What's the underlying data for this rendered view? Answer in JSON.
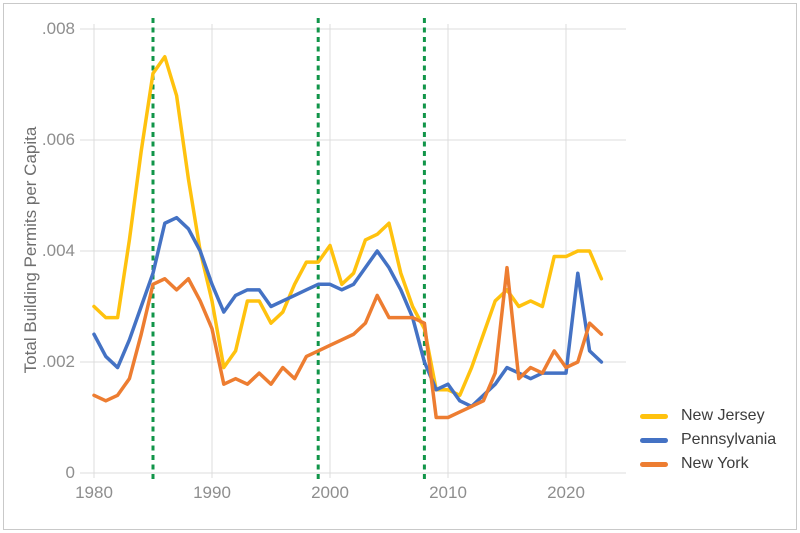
{
  "figure": {
    "background_color": "#ffffff",
    "border_color": "#c9c9c9",
    "grid_color": "#dcdcdc",
    "axis_tick_text_color": "#8e8e8e",
    "axis_title_text_color": "#6e6e6e",
    "legend_text_color": "#3d3d3d"
  },
  "chart_data": {
    "type": "line",
    "title": "",
    "xlabel": "",
    "ylabel": "Total Building Permits per Capita",
    "grid": true,
    "legend_position": "bottom-right",
    "xlim": [
      1980,
      2025
    ],
    "ylim": [
      0,
      0.008
    ],
    "xticks": {
      "values": [
        1980,
        1990,
        2000,
        2010,
        2020
      ],
      "labels": [
        "1980",
        "1990",
        "2000",
        "2010",
        "2020"
      ]
    },
    "yticks": {
      "values": [
        0,
        0.002,
        0.004,
        0.006,
        0.008
      ],
      "labels": [
        "0",
        ".002",
        ".004",
        ".006",
        ".008"
      ]
    },
    "vlines": {
      "style": "dashed",
      "color": "#119549",
      "years": [
        1985,
        1999,
        2008
      ]
    },
    "x": [
      1980,
      1981,
      1982,
      1983,
      1984,
      1985,
      1986,
      1987,
      1988,
      1989,
      1990,
      1991,
      1992,
      1993,
      1994,
      1995,
      1996,
      1997,
      1998,
      1999,
      2000,
      2001,
      2002,
      2003,
      2004,
      2005,
      2006,
      2007,
      2008,
      2009,
      2010,
      2011,
      2012,
      2013,
      2014,
      2015,
      2016,
      2017,
      2018,
      2019,
      2020,
      2021,
      2022,
      2023
    ],
    "series": [
      {
        "name": "New Jersey",
        "color": "#FFC20E",
        "values": [
          0.003,
          0.0028,
          0.0028,
          0.0042,
          0.0058,
          0.0072,
          0.0075,
          0.0068,
          0.0053,
          0.004,
          0.0031,
          0.0019,
          0.0022,
          0.0031,
          0.0031,
          0.0027,
          0.0029,
          0.0034,
          0.0038,
          0.0038,
          0.0041,
          0.0034,
          0.0036,
          0.0042,
          0.0043,
          0.0045,
          0.0036,
          0.003,
          0.0026,
          0.0015,
          0.0015,
          0.0014,
          0.0019,
          0.0025,
          0.0031,
          0.0033,
          0.003,
          0.0031,
          0.003,
          0.0039,
          0.0039,
          0.004,
          0.004,
          0.0035
        ]
      },
      {
        "name": "Pennsylvania",
        "color": "#4472C4",
        "values": [
          0.0025,
          0.0021,
          0.0019,
          0.0024,
          0.003,
          0.0036,
          0.0045,
          0.0046,
          0.0044,
          0.004,
          0.0034,
          0.0029,
          0.0032,
          0.0033,
          0.0033,
          0.003,
          0.0031,
          0.0032,
          0.0033,
          0.0034,
          0.0034,
          0.0033,
          0.0034,
          0.0037,
          0.004,
          0.0037,
          0.0033,
          0.0028,
          0.002,
          0.0015,
          0.0016,
          0.0013,
          0.0012,
          0.0014,
          0.0016,
          0.0019,
          0.0018,
          0.0017,
          0.0018,
          0.0018,
          0.0018,
          0.0036,
          0.0022,
          0.002
        ]
      },
      {
        "name": "New York",
        "color": "#ED7D31",
        "values": [
          0.0014,
          0.0013,
          0.0014,
          0.0017,
          0.0025,
          0.0034,
          0.0035,
          0.0033,
          0.0035,
          0.0031,
          0.0026,
          0.0016,
          0.0017,
          0.0016,
          0.0018,
          0.0016,
          0.0019,
          0.0017,
          0.0021,
          0.0022,
          0.0023,
          0.0024,
          0.0025,
          0.0027,
          0.0032,
          0.0028,
          0.0028,
          0.0028,
          0.0027,
          0.001,
          0.001,
          0.0011,
          0.0012,
          0.0013,
          0.0018,
          0.0037,
          0.0017,
          0.0019,
          0.0018,
          0.0022,
          0.0019,
          0.002,
          0.0027,
          0.0025
        ]
      }
    ]
  }
}
